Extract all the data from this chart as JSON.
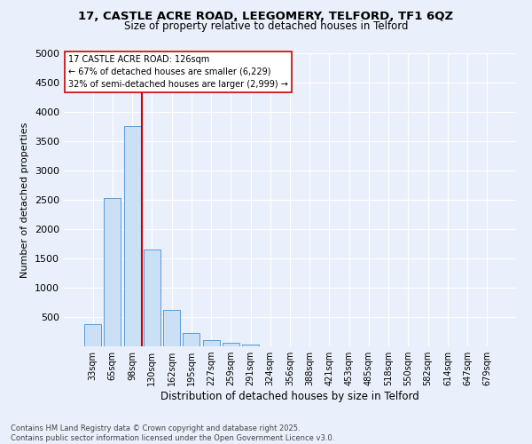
{
  "title1": "17, CASTLE ACRE ROAD, LEEGOMERY, TELFORD, TF1 6QZ",
  "title2": "Size of property relative to detached houses in Telford",
  "xlabel": "Distribution of detached houses by size in Telford",
  "ylabel": "Number of detached properties",
  "categories": [
    "33sqm",
    "65sqm",
    "98sqm",
    "130sqm",
    "162sqm",
    "195sqm",
    "227sqm",
    "259sqm",
    "291sqm",
    "324sqm",
    "356sqm",
    "388sqm",
    "421sqm",
    "453sqm",
    "485sqm",
    "518sqm",
    "550sqm",
    "582sqm",
    "614sqm",
    "647sqm",
    "679sqm"
  ],
  "values": [
    380,
    2530,
    3760,
    1650,
    620,
    230,
    100,
    55,
    30,
    0,
    0,
    0,
    0,
    0,
    0,
    0,
    0,
    0,
    0,
    0,
    0
  ],
  "bar_color": "#cce0f5",
  "bar_edge_color": "#5b9bd5",
  "vline_color": "#cc0000",
  "annotation_title": "17 CASTLE ACRE ROAD: 126sqm",
  "annotation_line1": "← 67% of detached houses are smaller (6,229)",
  "annotation_line2": "32% of semi-detached houses are larger (2,999) →",
  "annotation_box_color": "#cc0000",
  "ylim": [
    0,
    5000
  ],
  "yticks": [
    0,
    500,
    1000,
    1500,
    2000,
    2500,
    3000,
    3500,
    4000,
    4500,
    5000
  ],
  "footer1": "Contains HM Land Registry data © Crown copyright and database right 2025.",
  "footer2": "Contains public sector information licensed under the Open Government Licence v3.0.",
  "bg_color": "#eaf0fb",
  "plot_bg_color": "#eaf0fb"
}
